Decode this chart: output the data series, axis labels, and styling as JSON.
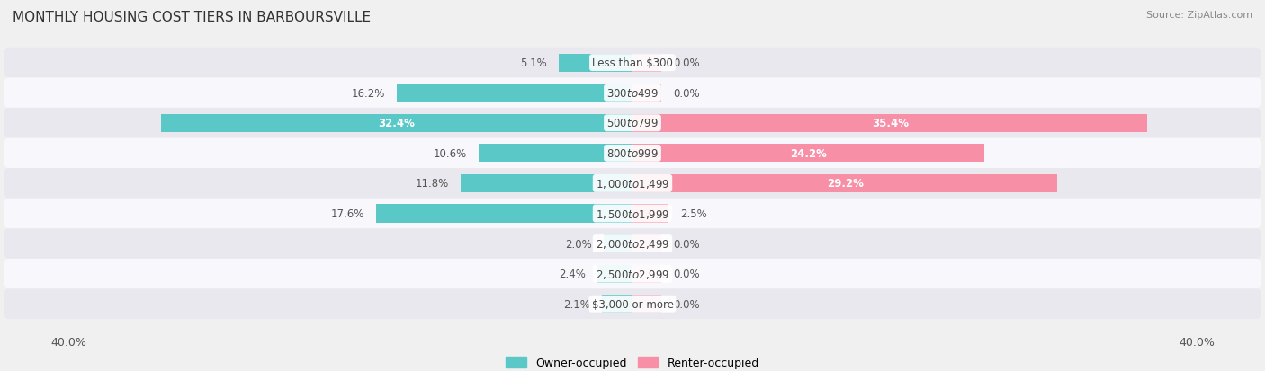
{
  "title": "MONTHLY HOUSING COST TIERS IN BARBOURSVILLE",
  "source": "Source: ZipAtlas.com",
  "categories": [
    "Less than $300",
    "$300 to $499",
    "$500 to $799",
    "$800 to $999",
    "$1,000 to $1,499",
    "$1,500 to $1,999",
    "$2,000 to $2,499",
    "$2,500 to $2,999",
    "$3,000 or more"
  ],
  "owner_values": [
    5.1,
    16.2,
    32.4,
    10.6,
    11.8,
    17.6,
    2.0,
    2.4,
    2.1
  ],
  "renter_values": [
    0.0,
    0.0,
    35.4,
    24.2,
    29.2,
    2.5,
    0.0,
    0.0,
    0.0
  ],
  "owner_color": "#5BC8C8",
  "renter_color": "#F78FA7",
  "axis_limit": 40.0,
  "background_color": "#f0f0f0",
  "row_colors": [
    "#e8e8ee",
    "#f8f8fc"
  ],
  "title_fontsize": 11,
  "label_fontsize": 8.5,
  "axis_label_fontsize": 9,
  "source_fontsize": 8,
  "legend_fontsize": 9
}
